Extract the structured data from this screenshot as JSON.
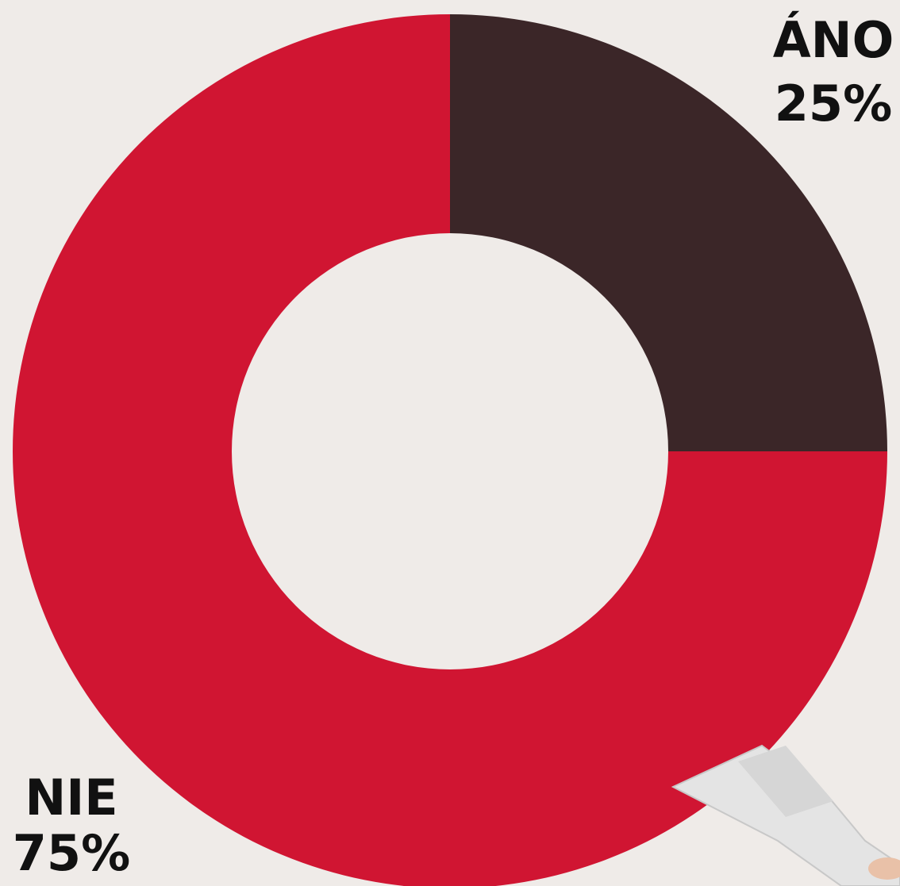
{
  "chart_data": {
    "type": "donut",
    "categories": [
      "ÁNO",
      "NIE"
    ],
    "values": [
      25,
      75
    ],
    "value_labels": [
      "25%",
      "75%"
    ],
    "colors": [
      "#3b2628",
      "#d01532"
    ]
  }
}
